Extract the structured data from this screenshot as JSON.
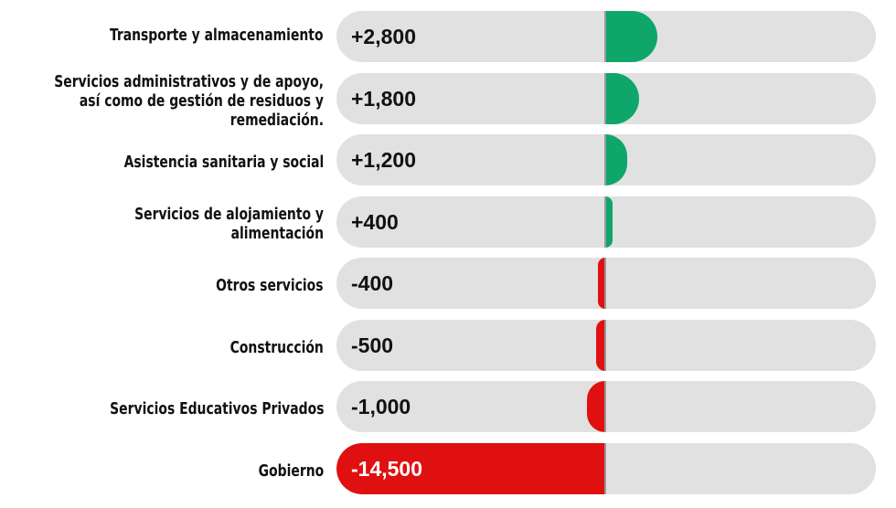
{
  "chart_data": {
    "type": "bar",
    "orientation": "horizontal",
    "categories": [
      "Transporte y almacenamiento",
      "Servicios administrativos y de apoyo,\nasí como de gestión de residuos y remediación.",
      "Asistencia sanitaria y social",
      "Servicios de alojamiento y alimentación",
      "Otros servicios",
      "Construcción",
      "Servicios Educativos Privados",
      "Gobierno"
    ],
    "values": [
      2800,
      1800,
      1200,
      400,
      -400,
      -500,
      -1000,
      -14500
    ],
    "value_labels": [
      "+2,800",
      "+1,800",
      "+1,200",
      "+400",
      "-400",
      "-500",
      "-1,000",
      "-14,500"
    ],
    "xlim": [
      -14500,
      14500
    ],
    "colors": {
      "positive": "#0fa66a",
      "negative": "#e01010",
      "track": "#e1e1e1"
    },
    "grid": false,
    "legend": "none"
  }
}
